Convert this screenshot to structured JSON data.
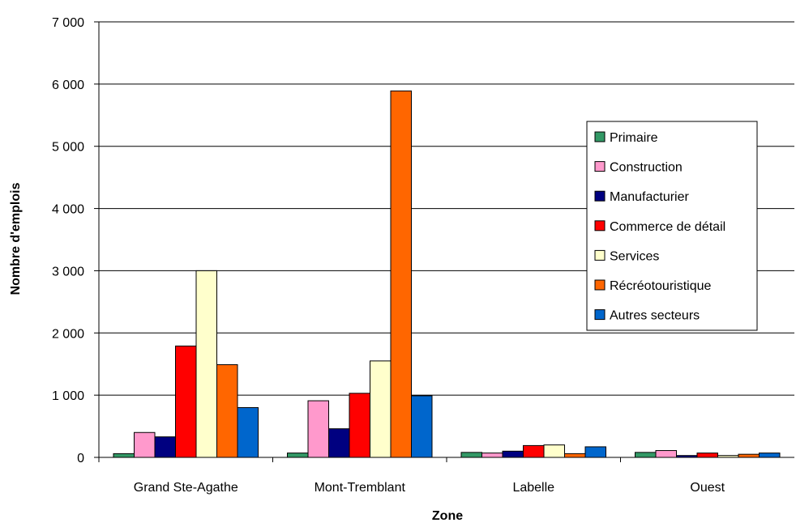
{
  "chart_data": {
    "type": "bar",
    "categories": [
      "Grand Ste-Agathe",
      "Mont-Tremblant",
      "Labelle",
      "Ouest"
    ],
    "series": [
      {
        "name": "Primaire",
        "color": "#339966",
        "values": [
          60,
          70,
          80,
          80
        ]
      },
      {
        "name": "Construction",
        "color": "#ff99cc",
        "values": [
          400,
          910,
          70,
          110
        ]
      },
      {
        "name": "Manufacturier",
        "color": "#000080",
        "values": [
          330,
          460,
          100,
          30
        ]
      },
      {
        "name": "Commerce de détail",
        "color": "#ff0000",
        "values": [
          1790,
          1030,
          190,
          70
        ]
      },
      {
        "name": "Services",
        "color": "#ffffcc",
        "values": [
          3000,
          1550,
          200,
          30
        ]
      },
      {
        "name": "Récréotouristique",
        "color": "#ff6600",
        "values": [
          1490,
          5890,
          60,
          50
        ]
      },
      {
        "name": "Autres secteurs",
        "color": "#0066cc",
        "values": [
          800,
          990,
          170,
          70
        ]
      }
    ],
    "xlabel": "Zone",
    "ylabel": "Nombre d'emplois",
    "ylim": [
      0,
      7000
    ],
    "yticks": [
      0,
      1000,
      2000,
      3000,
      4000,
      5000,
      6000,
      7000
    ],
    "ytick_labels": [
      "0",
      "1 000",
      "2 000",
      "3 000",
      "4 000",
      "5 000",
      "6 000",
      "7 000"
    ],
    "grid": true,
    "legend": "right"
  }
}
